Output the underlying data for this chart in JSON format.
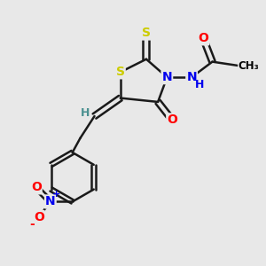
{
  "bg_color": "#e8e8e8",
  "atom_colors": {
    "S": "#cccc00",
    "O": "#ff0000",
    "N": "#0000ee",
    "C": "#000000",
    "H": "#4a9090"
  },
  "bond_color": "#1a1a1a",
  "lw": 1.8
}
